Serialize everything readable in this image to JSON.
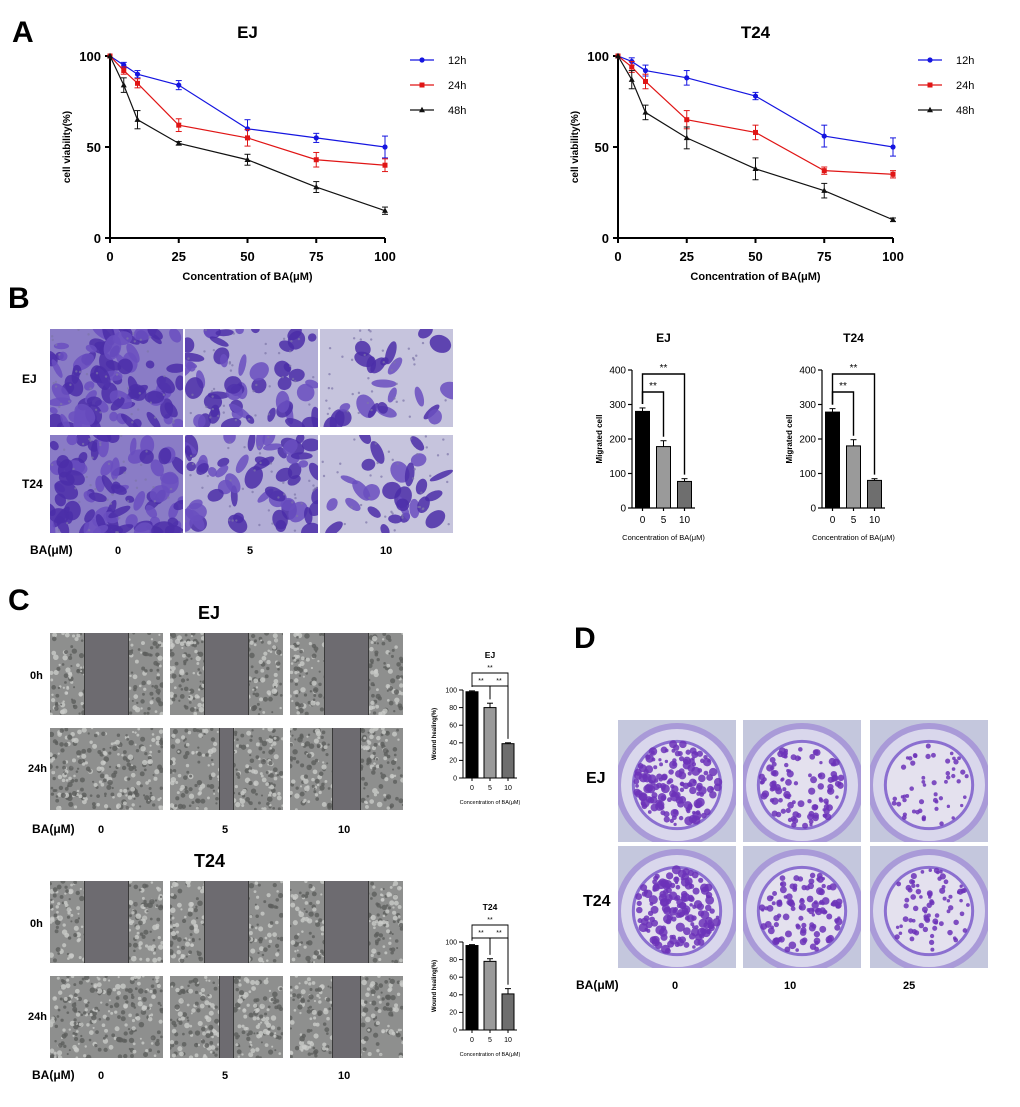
{
  "panels": {
    "a": "A",
    "b": "B",
    "c": "C",
    "d": "D"
  },
  "chart_data": [
    {
      "id": "viability_ej",
      "type": "line",
      "title": "EJ",
      "xlabel": "Concentration of BA(μM)",
      "ylabel": "cell viability(%)",
      "xlim": [
        0,
        100
      ],
      "ylim": [
        0,
        100
      ],
      "xticks": [
        "0",
        "25",
        "50",
        "75",
        "100"
      ],
      "yticks": [
        "0",
        "50",
        "100"
      ],
      "x": [
        0,
        5,
        10,
        25,
        50,
        75,
        100
      ],
      "series": [
        {
          "name": "12h",
          "color": "#1515e0",
          "marker": "circle",
          "values": [
            100,
            95,
            90,
            84,
            60,
            55,
            50
          ],
          "errors": [
            0,
            1.5,
            2,
            2.5,
            5,
            2.5,
            6
          ]
        },
        {
          "name": "24h",
          "color": "#e01515",
          "marker": "square",
          "values": [
            100,
            92,
            85,
            62,
            55,
            43,
            40
          ],
          "errors": [
            0,
            2,
            2.5,
            3.5,
            4.5,
            4,
            3.5
          ]
        },
        {
          "name": "48h",
          "color": "#111111",
          "marker": "triangle",
          "values": [
            100,
            84,
            65,
            52,
            43,
            28,
            15
          ],
          "errors": [
            0,
            4,
            5,
            1,
            3,
            3,
            2
          ]
        }
      ]
    },
    {
      "id": "viability_t24",
      "type": "line",
      "title": "T24",
      "xlabel": "Concentration of BA(μM)",
      "ylabel": "cell viability(%)",
      "xlim": [
        0,
        100
      ],
      "ylim": [
        0,
        100
      ],
      "xticks": [
        "0",
        "25",
        "50",
        "75",
        "100"
      ],
      "yticks": [
        "0",
        "50",
        "100"
      ],
      "x": [
        0,
        5,
        10,
        25,
        50,
        75,
        100
      ],
      "series": [
        {
          "name": "12h",
          "color": "#1515e0",
          "marker": "circle",
          "values": [
            100,
            97,
            92,
            88,
            78,
            56,
            50
          ],
          "errors": [
            0,
            2,
            3,
            4,
            2,
            6,
            5
          ]
        },
        {
          "name": "24h",
          "color": "#e01515",
          "marker": "square",
          "values": [
            100,
            94,
            86,
            65,
            58,
            37,
            35
          ],
          "errors": [
            0,
            3,
            4,
            5,
            4,
            2,
            2
          ]
        },
        {
          "name": "48h",
          "color": "#111111",
          "marker": "triangle",
          "values": [
            100,
            87,
            69,
            55,
            38,
            26,
            10
          ],
          "errors": [
            0,
            5,
            4,
            6,
            6,
            4,
            1
          ]
        }
      ]
    },
    {
      "id": "migration_ej",
      "type": "bar",
      "title": "EJ",
      "xlabel": "Concentration of BA(μM)",
      "ylabel": "Migrated cell",
      "ylim": [
        0,
        400
      ],
      "yticks": [
        "0",
        "100",
        "200",
        "300",
        "400"
      ],
      "categories": [
        "0",
        "5",
        "10"
      ],
      "values": [
        280,
        178,
        77
      ],
      "errors": [
        10,
        17,
        8
      ],
      "colors": [
        "#000000",
        "#9a9a9a",
        "#6e6e6e"
      ],
      "significance": [
        {
          "from": 0,
          "to": 1,
          "label": "**"
        },
        {
          "from": 0,
          "to": 2,
          "label": "**"
        }
      ]
    },
    {
      "id": "migration_t24",
      "type": "bar",
      "title": "T24",
      "xlabel": "Concentration of BA(μM)",
      "ylabel": "Migrated cell",
      "ylim": [
        0,
        400
      ],
      "yticks": [
        "0",
        "100",
        "200",
        "300",
        "400"
      ],
      "categories": [
        "0",
        "5",
        "10"
      ],
      "values": [
        278,
        180,
        80
      ],
      "errors": [
        10,
        18,
        5
      ],
      "colors": [
        "#000000",
        "#9a9a9a",
        "#6e6e6e"
      ],
      "significance": [
        {
          "from": 0,
          "to": 1,
          "label": "**"
        },
        {
          "from": 0,
          "to": 2,
          "label": "**"
        }
      ]
    },
    {
      "id": "wound_ej",
      "type": "bar",
      "title": "EJ",
      "xlabel": "Concentration of BA(μM)",
      "ylabel": "Wound healing(%)",
      "ylim": [
        0,
        100
      ],
      "yticks": [
        "0",
        "20",
        "40",
        "60",
        "80",
        "100"
      ],
      "categories": [
        "0",
        "5",
        "10"
      ],
      "values": [
        98,
        80,
        39
      ],
      "errors": [
        1,
        5,
        1
      ],
      "colors": [
        "#000000",
        "#9a9a9a",
        "#6e6e6e"
      ],
      "significance": [
        {
          "from": 0,
          "to": 1,
          "label": "**"
        },
        {
          "from": 1,
          "to": 2,
          "label": "**"
        },
        {
          "from": 0,
          "to": 2,
          "label": "**"
        }
      ]
    },
    {
      "id": "wound_t24",
      "type": "bar",
      "title": "T24",
      "xlabel": "Concentration of BA(μM)",
      "ylabel": "Wound healing(%)",
      "ylim": [
        0,
        100
      ],
      "yticks": [
        "0",
        "20",
        "40",
        "60",
        "80",
        "100"
      ],
      "categories": [
        "0",
        "5",
        "10"
      ],
      "values": [
        96,
        78,
        41
      ],
      "errors": [
        1,
        3,
        6
      ],
      "colors": [
        "#000000",
        "#9a9a9a",
        "#6e6e6e"
      ],
      "significance": [
        {
          "from": 0,
          "to": 1,
          "label": "**"
        },
        {
          "from": 1,
          "to": 2,
          "label": "**"
        },
        {
          "from": 0,
          "to": 2,
          "label": "**"
        }
      ]
    }
  ],
  "transwell": {
    "rows": [
      "EJ",
      "T24"
    ],
    "conc_label": "BA(μM)",
    "concs": [
      "0",
      "5",
      "10"
    ]
  },
  "wound_ej": {
    "title": "EJ",
    "rows": [
      "0h",
      "24h"
    ],
    "conc_label": "BA(μM)",
    "concs": [
      "0",
      "5",
      "10"
    ]
  },
  "wound_t24": {
    "title": "T24",
    "rows": [
      "0h",
      "24h"
    ],
    "conc_label": "BA(μM)",
    "concs": [
      "0",
      "5",
      "10"
    ]
  },
  "colony": {
    "rows": [
      "EJ",
      "T24"
    ],
    "conc_label": "BA(μM)",
    "concs": [
      "0",
      "10",
      "25"
    ]
  }
}
